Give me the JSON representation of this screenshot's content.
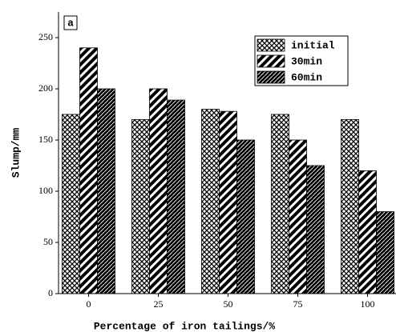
{
  "chart_data": {
    "type": "bar",
    "annotation": "a",
    "xlabel": "Percentage of iron tailings/%",
    "ylabel": "Slump/mm",
    "categories": [
      "0",
      "25",
      "50",
      "75",
      "100"
    ],
    "series": [
      {
        "name": "initial",
        "color": "#000000",
        "values": [
          175,
          170,
          180,
          175,
          170
        ]
      },
      {
        "name": "30min",
        "color": "#000000",
        "values": [
          240,
          200,
          178,
          150,
          120
        ]
      },
      {
        "name": "60min",
        "color": "#000000",
        "values": [
          200,
          189,
          150,
          125,
          80
        ]
      }
    ],
    "ylim": [
      0,
      275
    ],
    "yticks": [
      0,
      50,
      100,
      150,
      200,
      250
    ],
    "legend": "upper right"
  }
}
